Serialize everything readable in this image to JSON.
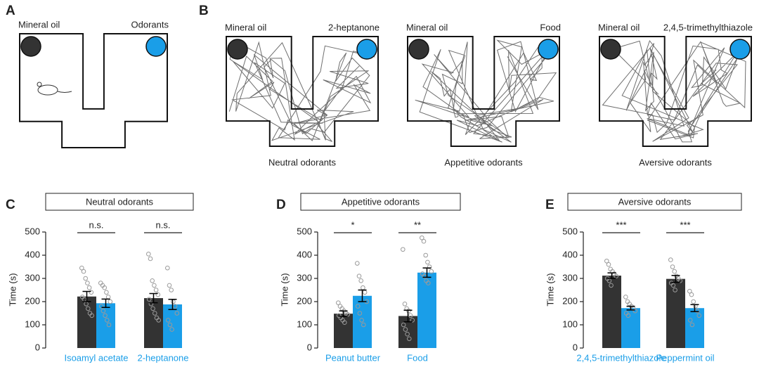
{
  "panel_labels": [
    "A",
    "B",
    "C",
    "D",
    "E"
  ],
  "arena_a": {
    "left_label": "Mineral oil",
    "right_label": "Odorants"
  },
  "arenas_b": [
    {
      "left_label": "Mineral oil",
      "right_label": "2-heptanone",
      "caption": "Neutral odorants"
    },
    {
      "left_label": "Mineral oil",
      "right_label": "Food",
      "caption": "Appetitive odorants"
    },
    {
      "left_label": "Mineral oil",
      "right_label": "2,4,5-trimethylthiazole",
      "caption": "Aversive odorants"
    }
  ],
  "chart_data": [
    {
      "type": "bar",
      "title": "Neutral odorants",
      "y_label": "Time (s)",
      "label_color": "#1a9ee8",
      "categories": [
        "Isoamyl acetate",
        "2-heptanone"
      ],
      "annotations": [
        "n.s.",
        "n.s."
      ],
      "ylim": [
        0,
        500
      ],
      "yticks": [
        0,
        100,
        200,
        300,
        400,
        500
      ],
      "series": [
        {
          "color": "#333333",
          "values": [
            222,
            215
          ],
          "errors": [
            22,
            20
          ],
          "points": [
            [
              345,
              330,
              300,
              280,
              260,
              240,
              220,
              210,
              190,
              170,
              150,
              140
            ],
            [
              405,
              385,
              290,
              270,
              250,
              230,
              210,
              190,
              170,
              150,
              130,
              120
            ]
          ]
        },
        {
          "color": "#1a9ee8",
          "values": [
            193,
            188
          ],
          "errors": [
            18,
            22
          ],
          "points": [
            [
              280,
              270,
              260,
              240,
              220,
              200,
              180,
              160,
              140,
              120,
              100
            ],
            [
              345,
              270,
              250,
              200,
              180,
              150,
              120,
              100,
              80
            ]
          ]
        }
      ]
    },
    {
      "type": "bar",
      "title": "Appetitive odorants",
      "y_label": "Time (s)",
      "label_color": "#1a9ee8",
      "categories": [
        "Peanut butter",
        "Food"
      ],
      "annotations": [
        "*",
        "**"
      ],
      "ylim": [
        0,
        500
      ],
      "yticks": [
        0,
        100,
        200,
        300,
        400,
        500
      ],
      "series": [
        {
          "color": "#333333",
          "values": [
            148,
            138
          ],
          "errors": [
            12,
            25
          ],
          "points": [
            [
              195,
              180,
              170,
              160,
              150,
              145,
              140,
              130,
              120,
              110
            ],
            [
              425,
              190,
              170,
              160,
              140,
              120,
              100,
              80,
              60,
              40
            ]
          ]
        },
        {
          "color": "#1a9ee8",
          "values": [
            225,
            325
          ],
          "errors": [
            25,
            20
          ],
          "points": [
            [
              365,
              310,
              290,
              260,
              240,
              200,
              180,
              150,
              120,
              100
            ],
            [
              475,
              460,
              400,
              370,
              350,
              330,
              320,
              310,
              290,
              280
            ]
          ]
        }
      ]
    },
    {
      "type": "bar",
      "title": "Aversive odorants",
      "y_label": "Time (s)",
      "label_color": "#1a9ee8",
      "categories": [
        "2,4,5-trimethylthiazole",
        "Peppermint oil"
      ],
      "annotations": [
        "***",
        "***"
      ],
      "ylim": [
        0,
        500
      ],
      "yticks": [
        0,
        100,
        200,
        300,
        400,
        500
      ],
      "series": [
        {
          "color": "#333333",
          "values": [
            312,
            298
          ],
          "errors": [
            12,
            15
          ],
          "points": [
            [
              375,
              360,
              340,
              330,
              320,
              310,
              300,
              290,
              270
            ],
            [
              380,
              350,
              330,
              310,
              300,
              290,
              280,
              270,
              250
            ]
          ]
        },
        {
          "color": "#1a9ee8",
          "values": [
            172,
            172
          ],
          "errors": [
            8,
            15
          ],
          "points": [
            [
              220,
              200,
              190,
              180,
              170,
              160,
              150,
              140
            ],
            [
              245,
              230,
              200,
              180,
              160,
              140,
              120,
              100
            ]
          ]
        }
      ]
    }
  ]
}
